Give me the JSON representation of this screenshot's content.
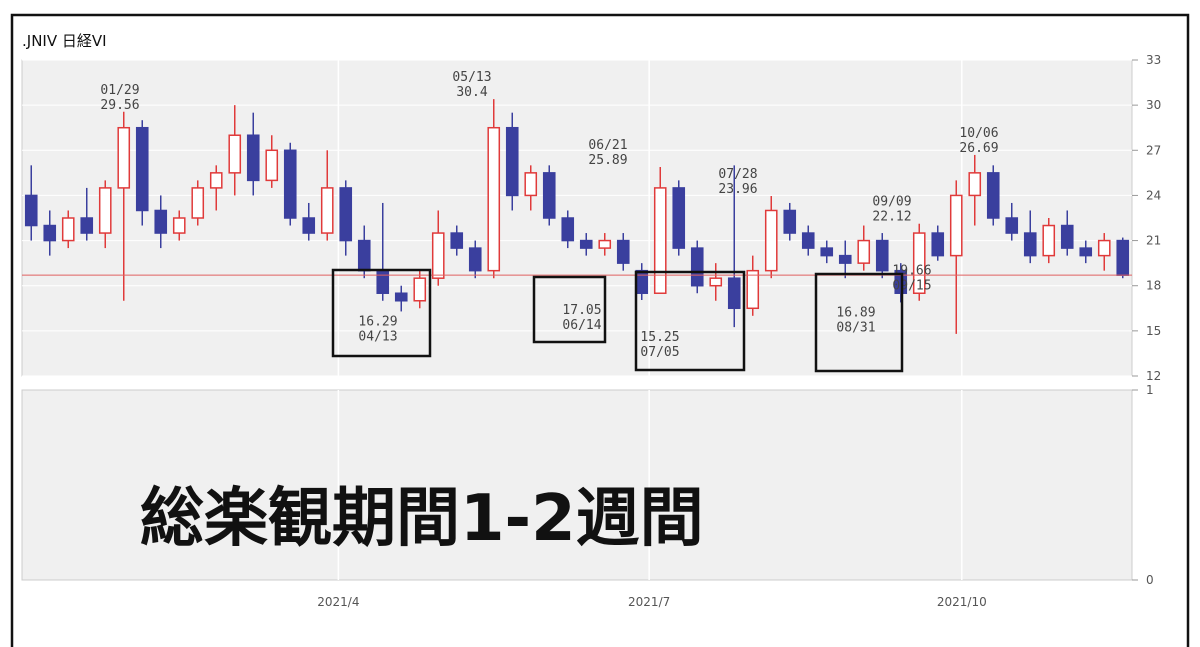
{
  "chart_data": {
    "type": "candlestick",
    "title": ".JNIV 日経VI",
    "overlay_text": "総楽観期間1-2週間",
    "open": [
      24,
      22,
      21,
      22.5,
      21.5,
      24.5,
      28.5,
      23,
      21.5,
      22.5,
      24.5,
      25.5,
      28,
      25,
      27,
      22.5,
      21.5,
      24.5,
      21,
      19,
      17.5,
      17,
      18.5,
      21.5,
      20.5,
      19,
      28.5,
      24,
      25.5,
      22.5,
      21,
      20.5,
      21,
      19,
      17.5,
      24.5,
      20.5,
      18,
      18.5,
      16.5,
      19,
      23,
      21.5,
      20.5,
      20,
      19.5,
      21,
      19,
      17.5,
      21.5,
      20,
      24,
      25.5,
      22.5,
      21.5,
      20,
      22,
      20.5,
      20,
      21
    ],
    "high": [
      26,
      23,
      23,
      24.5,
      25,
      29.56,
      29,
      24,
      23,
      25,
      26,
      30,
      29.5,
      28,
      27.5,
      23.5,
      27,
      25,
      22,
      23.5,
      18,
      19,
      23,
      22,
      21,
      30.4,
      29.5,
      26,
      26,
      23,
      21.5,
      21.5,
      21.5,
      19.5,
      25.89,
      25,
      21,
      19.5,
      26,
      20,
      23.96,
      23.5,
      22,
      21,
      21,
      22,
      21.5,
      19.5,
      22.12,
      22,
      25,
      26.69,
      26,
      23.5,
      23,
      22.5,
      23,
      21,
      21.5,
      21.2
    ],
    "low": [
      21,
      20,
      20.5,
      21,
      20.5,
      17,
      22,
      20.5,
      21,
      22,
      23,
      24,
      24,
      24.5,
      22,
      21,
      21,
      20,
      18.5,
      17,
      16.29,
      16.5,
      18,
      20,
      18.5,
      18.5,
      23,
      23,
      22,
      20.5,
      20,
      20,
      19,
      17.05,
      17.5,
      20,
      17.5,
      17,
      15.25,
      16,
      18.5,
      21,
      20,
      19.5,
      18.5,
      19,
      18.5,
      16.89,
      17,
      19.66,
      14.8,
      22,
      22,
      21,
      19.5,
      19.5,
      20,
      19.5,
      19,
      18.5
    ],
    "close": [
      22,
      21,
      22.5,
      21.5,
      24.5,
      28.5,
      23,
      21.5,
      22.5,
      24.5,
      25.5,
      28,
      25,
      27,
      22.5,
      21.5,
      24.5,
      21,
      19,
      17.5,
      17,
      18.5,
      21.5,
      20.5,
      19,
      28.5,
      24,
      25.5,
      22.5,
      21,
      20.5,
      21,
      19.5,
      17.5,
      24.5,
      20.5,
      18,
      18.5,
      16.5,
      19,
      23,
      21.5,
      20.5,
      20,
      19.5,
      21,
      19,
      17.5,
      21.5,
      20,
      24,
      25.5,
      22.5,
      21.5,
      20,
      22,
      20.5,
      20,
      21,
      18.7
    ],
    "up_color": "#e03a3a",
    "down_color": "#3a3f9e",
    "reference_line": 18.7,
    "reference_color": "#e06060",
    "ylim": [
      12,
      33
    ],
    "yticks": [
      12,
      15,
      18,
      21,
      24,
      27,
      30,
      33
    ],
    "xlim": [
      0,
      60
    ],
    "xticks": [
      {
        "value": 17.1,
        "label": "2021/4"
      },
      {
        "value": 33.9,
        "label": "2021/7"
      },
      {
        "value": 50.8,
        "label": "2021/10"
      }
    ],
    "annotations": [
      {
        "date": "01/29",
        "value": 29.56
      },
      {
        "date": "04/13",
        "value": 16.29
      },
      {
        "date": "05/13",
        "value": 30.4
      },
      {
        "date": "06/14",
        "value": 17.05
      },
      {
        "date": "06/21",
        "value": 25.89
      },
      {
        "date": "07/05",
        "value": 15.25
      },
      {
        "date": "07/28",
        "value": 23.96
      },
      {
        "date": "08/31",
        "value": 16.89
      },
      {
        "date": "09/09",
        "value": 22.12
      },
      {
        "date": "09/15",
        "value": 19.66
      },
      {
        "date": "10/06",
        "value": 26.69
      }
    ],
    "panel2": {
      "ylim": [
        0,
        1
      ],
      "yticks": [
        0,
        1
      ]
    }
  }
}
